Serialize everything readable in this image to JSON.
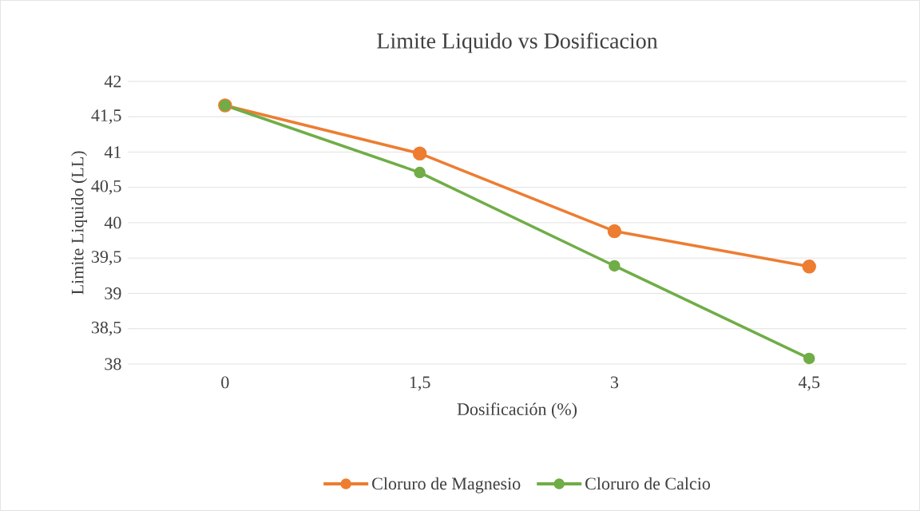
{
  "chart_data": {
    "type": "line",
    "title": "Limite Liquido vs Dosificacion",
    "xlabel": "Dosificación (%)",
    "ylabel": "Limite Liquido (LL)",
    "categories": [
      "0",
      "1,5",
      "3",
      "4,5"
    ],
    "series": [
      {
        "name": "Cloruro de Magnesio",
        "color": "#ed7d31",
        "values": [
          41.66,
          40.98,
          39.88,
          39.38
        ]
      },
      {
        "name": "Cloruro de Calcio",
        "color": "#70ad47",
        "values": [
          41.66,
          40.71,
          39.39,
          38.08
        ]
      }
    ],
    "ylim": [
      38,
      42
    ],
    "yticks": [
      38,
      {
        "value": 38.5,
        "label": "38,5"
      },
      39,
      {
        "value": 39.5,
        "label": "39,5"
      },
      40,
      {
        "value": 40.5,
        "label": "40,5"
      },
      41,
      {
        "value": 41.5,
        "label": "41,5"
      },
      42
    ],
    "grid": "y",
    "legend": "bottom",
    "marker": "circle",
    "line_style": "solid"
  }
}
